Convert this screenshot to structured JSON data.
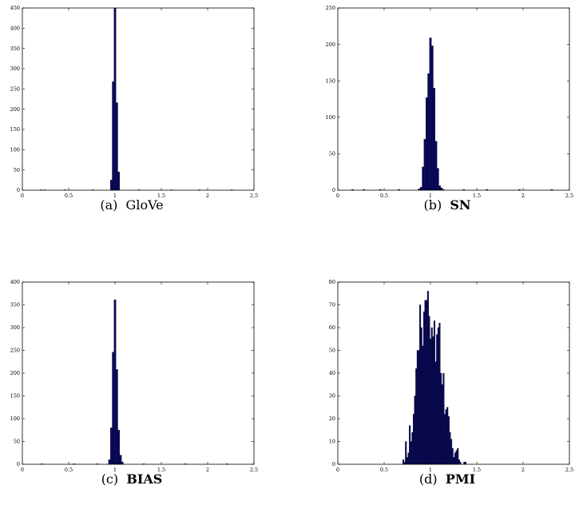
{
  "chart_data": [
    {
      "type": "bar",
      "label": "(a)",
      "name": "GloVe",
      "name_bold": false,
      "xlim": [
        0,
        2.5
      ],
      "ylim": [
        0,
        450
      ],
      "xticks": [
        "0",
        "0.5",
        "1",
        "1.5",
        "2",
        "2.5"
      ],
      "yticks": [
        "0",
        "50",
        "100",
        "150",
        "200",
        "250",
        "300",
        "350",
        "400",
        "450"
      ],
      "bin_width": 0.02,
      "bins": [
        [
          0.95,
          25
        ],
        [
          0.97,
          268
        ],
        [
          0.99,
          450
        ],
        [
          1.01,
          216
        ],
        [
          1.03,
          45
        ]
      ],
      "tail_bins": [
        [
          0.19,
          1
        ],
        [
          0.23,
          1
        ],
        [
          0.45,
          1
        ],
        [
          0.75,
          1
        ],
        [
          1.25,
          1
        ],
        [
          1.6,
          1
        ],
        [
          1.9,
          1
        ],
        [
          2.25,
          1
        ]
      ]
    },
    {
      "type": "bar",
      "label": "(b)",
      "name": "SN",
      "name_bold": true,
      "xlim": [
        0,
        2.5
      ],
      "ylim": [
        0,
        250
      ],
      "xticks": [
        "0",
        "0.5",
        "1",
        "1.5",
        "2",
        "2.5"
      ],
      "yticks": [
        "0",
        "50",
        "100",
        "150",
        "200",
        "250"
      ],
      "bin_width": 0.02,
      "bins": [
        [
          0.87,
          2
        ],
        [
          0.89,
          4
        ],
        [
          0.91,
          32
        ],
        [
          0.93,
          70
        ],
        [
          0.95,
          127
        ],
        [
          0.97,
          160
        ],
        [
          0.99,
          209
        ],
        [
          1.01,
          198
        ],
        [
          1.03,
          140
        ],
        [
          1.05,
          67
        ],
        [
          1.07,
          30
        ],
        [
          1.09,
          6
        ],
        [
          1.11,
          3
        ],
        [
          1.13,
          1
        ]
      ],
      "tail_bins": [
        [
          0.15,
          1
        ],
        [
          0.27,
          1
        ],
        [
          0.45,
          1
        ],
        [
          0.65,
          1
        ],
        [
          1.35,
          1
        ],
        [
          1.6,
          1
        ],
        [
          1.95,
          1
        ],
        [
          2.3,
          1
        ]
      ]
    },
    {
      "type": "bar",
      "label": "(c)",
      "name": "BIAS",
      "name_bold": true,
      "xlim": [
        0,
        2.5
      ],
      "ylim": [
        0,
        400
      ],
      "xticks": [
        "0",
        "0.5",
        "1",
        "1.5",
        "2",
        "2.5"
      ],
      "yticks": [
        "0",
        "50",
        "100",
        "150",
        "200",
        "250",
        "300",
        "350",
        "400"
      ],
      "bin_width": 0.02,
      "bins": [
        [
          0.93,
          10
        ],
        [
          0.95,
          80
        ],
        [
          0.97,
          246
        ],
        [
          0.99,
          361
        ],
        [
          1.01,
          208
        ],
        [
          1.03,
          75
        ],
        [
          1.05,
          20
        ],
        [
          1.07,
          5
        ]
      ],
      "tail_bins": [
        [
          0.2,
          1
        ],
        [
          0.55,
          1
        ],
        [
          0.8,
          1
        ],
        [
          1.3,
          1
        ],
        [
          1.75,
          1
        ],
        [
          2.2,
          1
        ]
      ]
    },
    {
      "type": "bar",
      "label": "(d)",
      "name": "PMI",
      "name_bold": true,
      "xlim": [
        0,
        2.5
      ],
      "ylim": [
        0,
        80
      ],
      "xticks": [
        "0",
        "0.5",
        "1",
        "1.5",
        "2",
        "2.5"
      ],
      "yticks": [
        "0",
        "10",
        "20",
        "30",
        "40",
        "50",
        "60",
        "70",
        "80"
      ],
      "bin_width": 0.014,
      "bins": [
        [
          0.7,
          2
        ],
        [
          0.714,
          1
        ],
        [
          0.728,
          10
        ],
        [
          0.742,
          3
        ],
        [
          0.756,
          5
        ],
        [
          0.77,
          17
        ],
        [
          0.784,
          10
        ],
        [
          0.798,
          14
        ],
        [
          0.812,
          22
        ],
        [
          0.826,
          30
        ],
        [
          0.84,
          42
        ],
        [
          0.854,
          50
        ],
        [
          0.868,
          50
        ],
        [
          0.882,
          70
        ],
        [
          0.896,
          60
        ],
        [
          0.91,
          52
        ],
        [
          0.924,
          67
        ],
        [
          0.938,
          72
        ],
        [
          0.952,
          72
        ],
        [
          0.966,
          76
        ],
        [
          0.98,
          65
        ],
        [
          0.994,
          55
        ],
        [
          1.008,
          60
        ],
        [
          1.022,
          56
        ],
        [
          1.036,
          63
        ],
        [
          1.05,
          45
        ],
        [
          1.064,
          57
        ],
        [
          1.078,
          60
        ],
        [
          1.092,
          62
        ],
        [
          1.106,
          40
        ],
        [
          1.12,
          35
        ],
        [
          1.134,
          40
        ],
        [
          1.148,
          22
        ],
        [
          1.162,
          24
        ],
        [
          1.176,
          25
        ],
        [
          1.19,
          21
        ],
        [
          1.204,
          14
        ],
        [
          1.218,
          11
        ],
        [
          1.232,
          7
        ],
        [
          1.246,
          3
        ],
        [
          1.26,
          5
        ],
        [
          1.274,
          6
        ],
        [
          1.288,
          7
        ],
        [
          1.302,
          2
        ],
        [
          1.316,
          1
        ],
        [
          1.358,
          1
        ],
        [
          1.372,
          1
        ]
      ],
      "tail_bins": []
    }
  ]
}
